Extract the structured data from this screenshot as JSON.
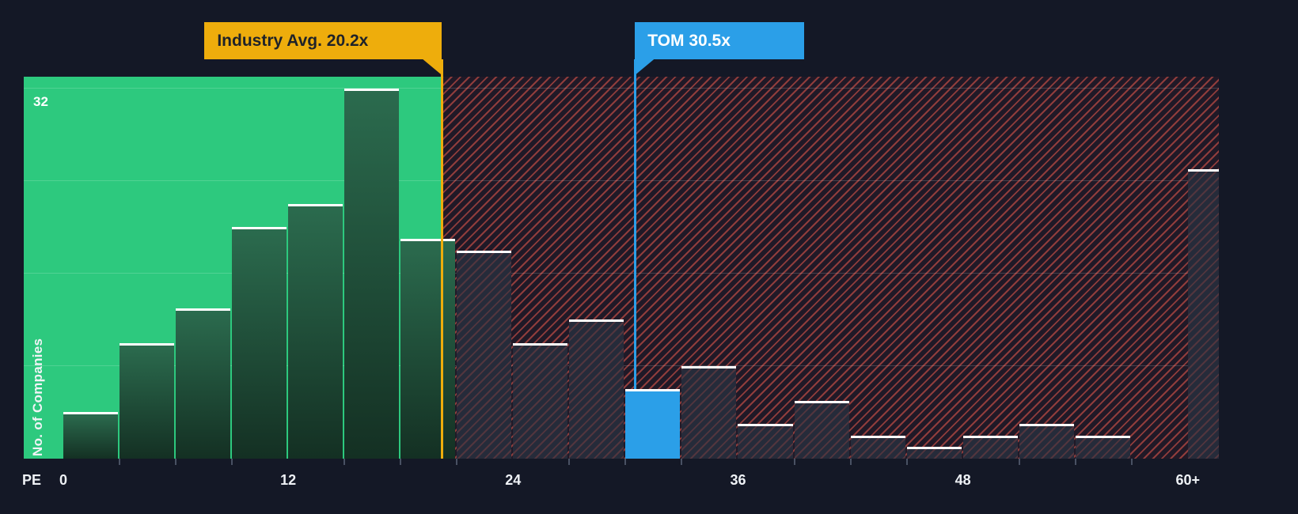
{
  "axis": {
    "x_title": "PE",
    "y_title": "No. of Companies",
    "y_max_label": "32",
    "x_ticks": [
      {
        "pe": 0,
        "label": "0"
      },
      {
        "pe": 12,
        "label": "12"
      },
      {
        "pe": 24,
        "label": "24"
      },
      {
        "pe": 36,
        "label": "36"
      },
      {
        "pe": 48,
        "label": "48"
      },
      {
        "pe": 60,
        "label": "60+"
      }
    ]
  },
  "callouts": {
    "industry_avg": {
      "label": "Industry Avg. 20.2x",
      "value": 20.2,
      "color": "#eead0c"
    },
    "company": {
      "label": "TOM 30.5x",
      "ticker": "TOM",
      "value": 30.5,
      "color": "#2b9fe8"
    }
  },
  "chart_data": {
    "type": "bar",
    "subtype": "histogram",
    "title": "",
    "xlabel": "PE",
    "ylabel": "No. of Companies",
    "ylim": [
      0,
      33
    ],
    "grid_step": 8,
    "bucket_width": 3,
    "industry_avg": 20.2,
    "highlight": {
      "name": "TOM",
      "pe": 30.5,
      "bucket_start": 30
    },
    "colors": {
      "background": "#141826",
      "below_avg_region": "#2dc97e",
      "above_avg_hatch": "#ec5a4d",
      "below_avg_bar": "#1e5a41",
      "above_avg_bar": "#262b3a",
      "highlight_bar": "#2b9fe8",
      "industry_line": "#eead0c",
      "bar_top_edge": "#ffffff"
    },
    "buckets": [
      {
        "start": 0,
        "count": 4
      },
      {
        "start": 3,
        "count": 10
      },
      {
        "start": 6,
        "count": 13
      },
      {
        "start": 9,
        "count": 20
      },
      {
        "start": 12,
        "count": 22
      },
      {
        "start": 15,
        "count": 32
      },
      {
        "start": 18,
        "count": 19
      },
      {
        "start": 21,
        "count": 18
      },
      {
        "start": 24,
        "count": 10
      },
      {
        "start": 27,
        "count": 12
      },
      {
        "start": 30,
        "count": 6
      },
      {
        "start": 33,
        "count": 8
      },
      {
        "start": 36,
        "count": 3
      },
      {
        "start": 39,
        "count": 5
      },
      {
        "start": 42,
        "count": 2
      },
      {
        "start": 45,
        "count": 1
      },
      {
        "start": 48,
        "count": 2
      },
      {
        "start": 51,
        "count": 3
      },
      {
        "start": 54,
        "count": 2
      },
      {
        "start": 57,
        "count": 0
      },
      {
        "start": 60,
        "count": 25,
        "open_ended": true,
        "label": "60+"
      }
    ]
  }
}
